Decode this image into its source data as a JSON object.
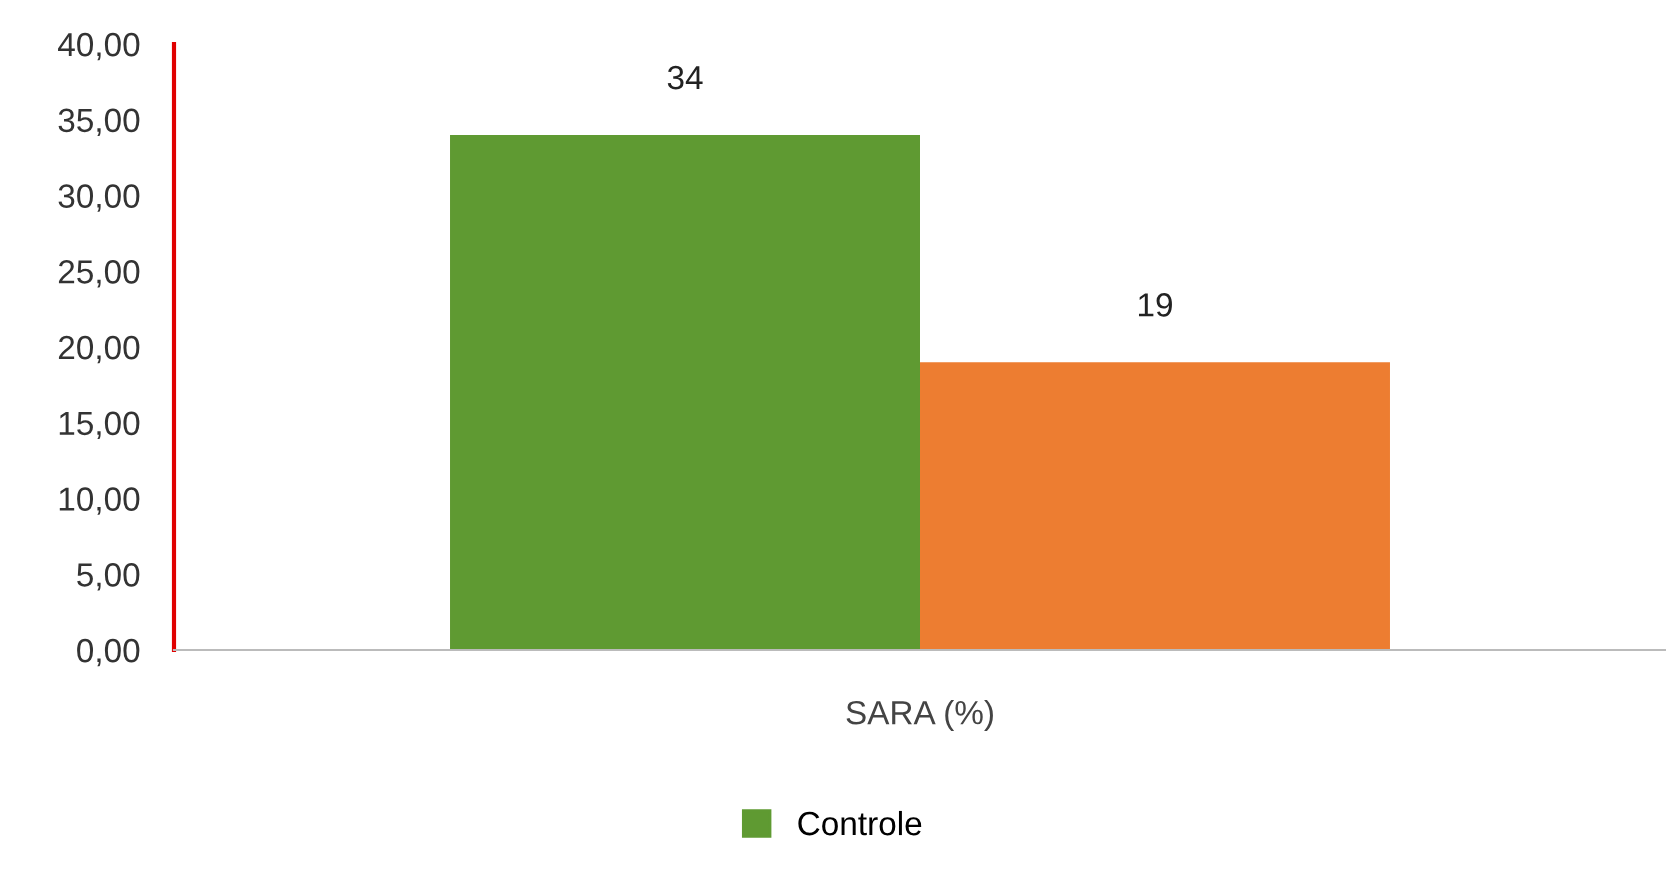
{
  "chart_data": {
    "type": "bar",
    "categories": [
      "SARA (%)"
    ],
    "series": [
      {
        "name": "Controle",
        "color": "#5f9a32",
        "values": [
          34
        ]
      },
      {
        "color": "#ed7d31",
        "values": [
          19
        ]
      }
    ],
    "ylim": [
      0,
      40
    ],
    "yticks": [
      {
        "value": 0,
        "label": "0,00"
      },
      {
        "value": 5,
        "label": "5,00"
      },
      {
        "value": 10,
        "label": "10,00"
      },
      {
        "value": 15,
        "label": "15,00"
      },
      {
        "value": 20,
        "label": "20,00"
      },
      {
        "value": 25,
        "label": "25,00"
      },
      {
        "value": 30,
        "label": "30,00"
      },
      {
        "value": 35,
        "label": "35,00"
      },
      {
        "value": 40,
        "label": "40,00"
      }
    ],
    "data_labels": true,
    "legend": "bottom",
    "grid": false
  }
}
